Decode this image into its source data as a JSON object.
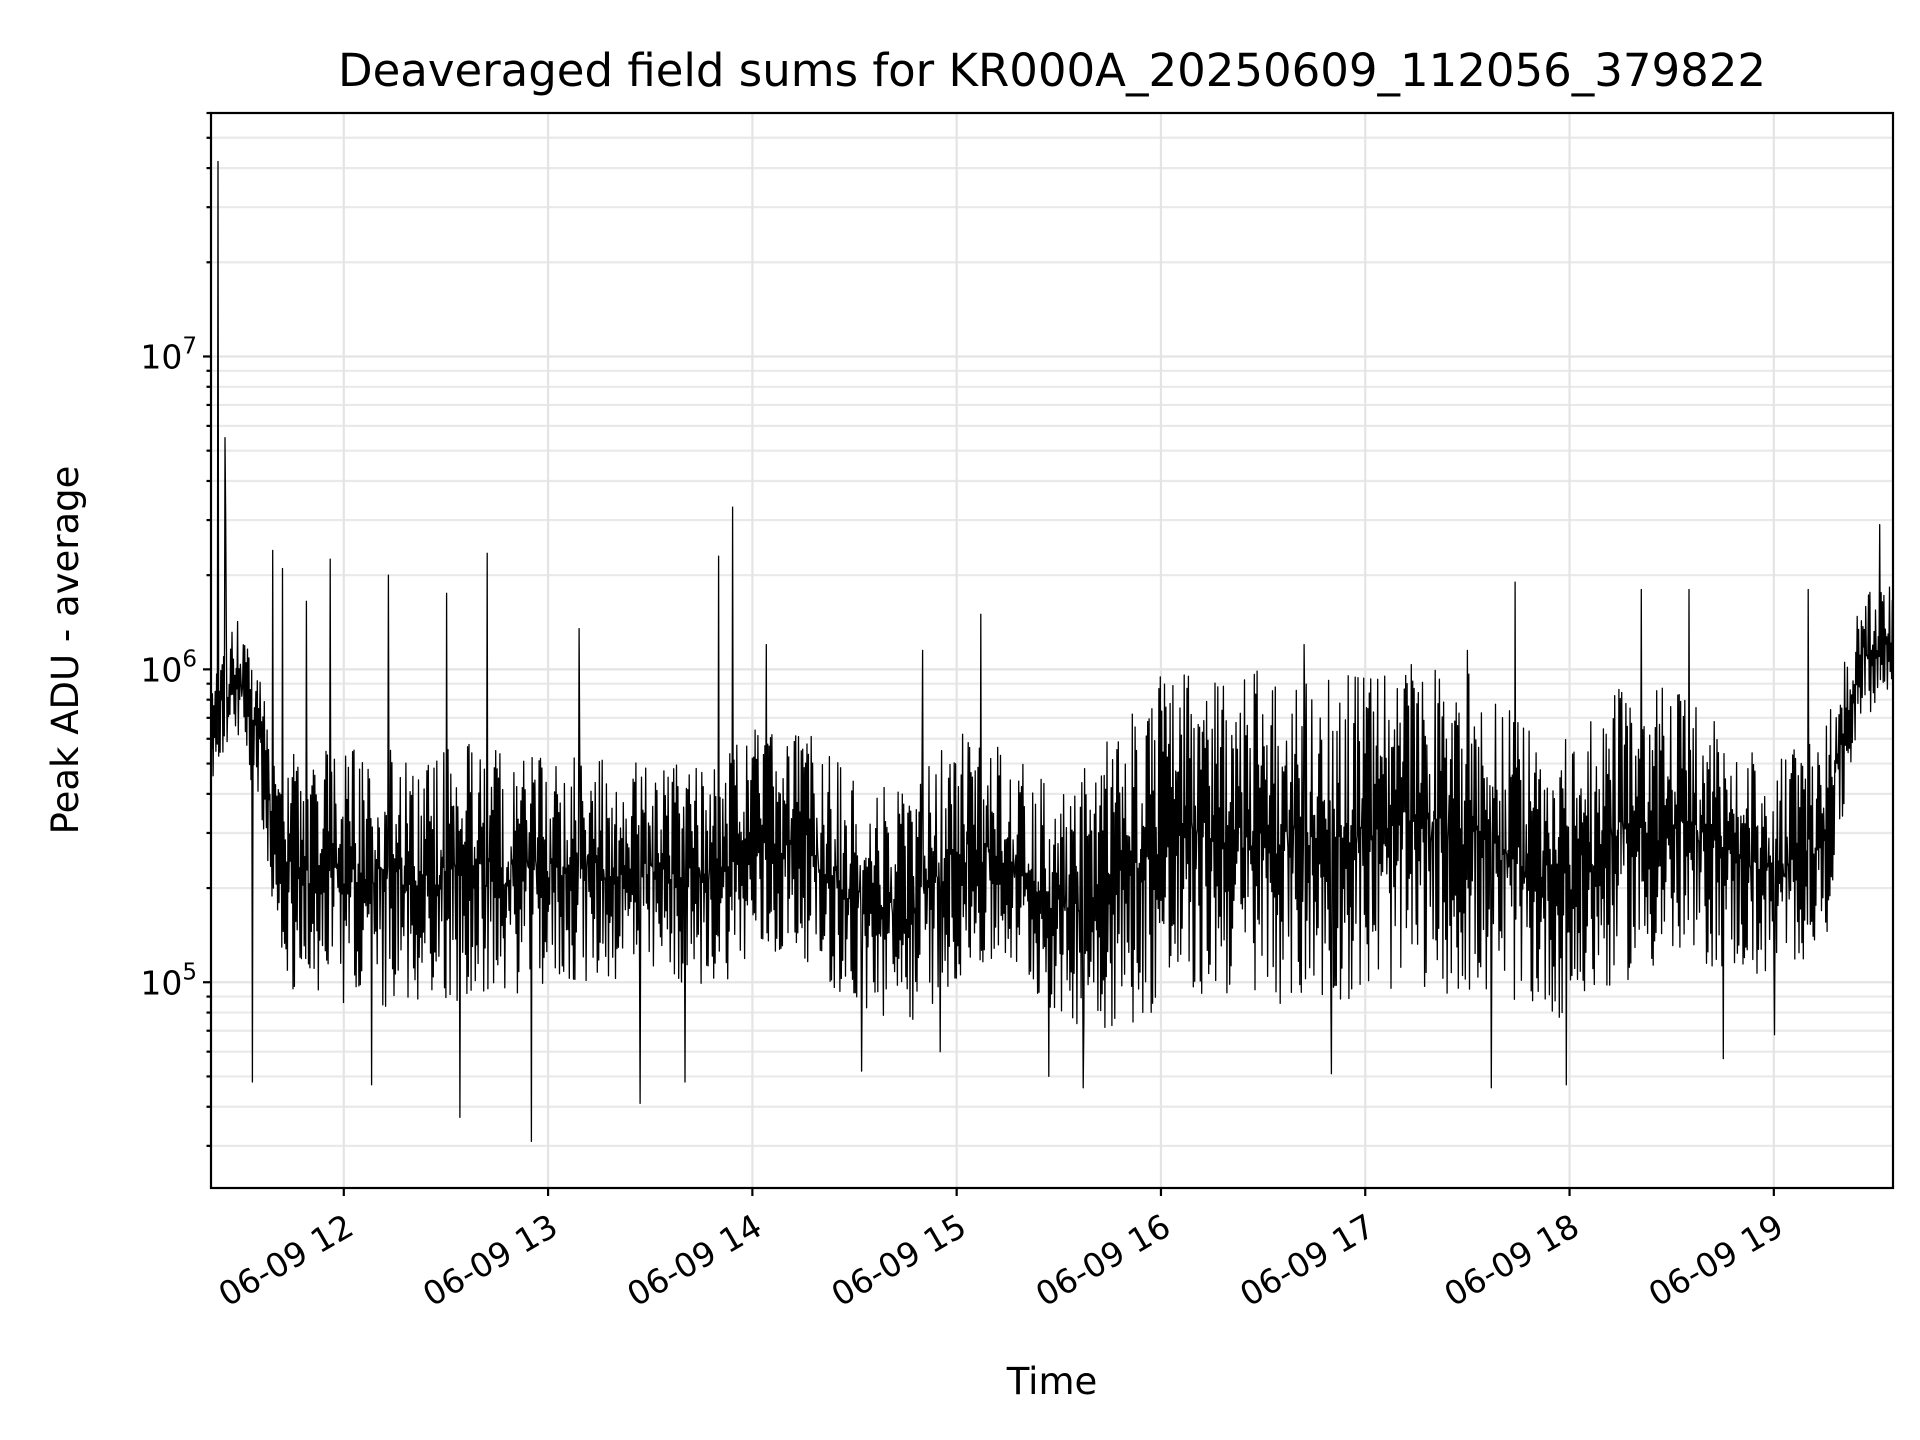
{
  "chart_data": {
    "type": "line",
    "title": "Deaveraged field sums for KR000A_20250609_112056_379822",
    "xlabel": "Time",
    "ylabel": "Peak ADU - average",
    "yscale": "log",
    "xlim": [
      "2025-06-09 11:21",
      "2025-06-09 19:35"
    ],
    "ylim": [
      22000,
      60000000
    ],
    "grid": true,
    "x_ticks": [
      {
        "value": "2025-06-09 12:00",
        "label": "06-09 12"
      },
      {
        "value": "2025-06-09 13:00",
        "label": "06-09 13"
      },
      {
        "value": "2025-06-09 14:00",
        "label": "06-09 14"
      },
      {
        "value": "2025-06-09 15:00",
        "label": "06-09 15"
      },
      {
        "value": "2025-06-09 16:00",
        "label": "06-09 16"
      },
      {
        "value": "2025-06-09 17:00",
        "label": "06-09 17"
      },
      {
        "value": "2025-06-09 18:00",
        "label": "06-09 18"
      },
      {
        "value": "2025-06-09 19:00",
        "label": "06-09 19"
      }
    ],
    "y_ticks": [
      {
        "value": 100000,
        "base": "10",
        "exp": "5"
      },
      {
        "value": 1000000,
        "base": "10",
        "exp": "6"
      },
      {
        "value": 10000000,
        "base": "10",
        "exp": "7"
      }
    ],
    "series_color": "#000000",
    "envelope": {
      "time": [
        "2025-06-09 11:21",
        "2025-06-09 11:25",
        "2025-06-09 11:30",
        "2025-06-09 11:35",
        "2025-06-09 11:40",
        "2025-06-09 11:45",
        "2025-06-09 11:50",
        "2025-06-09 12:00",
        "2025-06-09 12:15",
        "2025-06-09 12:30",
        "2025-06-09 12:45",
        "2025-06-09 13:00",
        "2025-06-09 13:15",
        "2025-06-09 13:30",
        "2025-06-09 13:45",
        "2025-06-09 14:00",
        "2025-06-09 14:15",
        "2025-06-09 14:30",
        "2025-06-09 14:45",
        "2025-06-09 15:00",
        "2025-06-09 15:15",
        "2025-06-09 15:30",
        "2025-06-09 15:45",
        "2025-06-09 16:00",
        "2025-06-09 16:15",
        "2025-06-09 16:30",
        "2025-06-09 16:45",
        "2025-06-09 17:00",
        "2025-06-09 17:15",
        "2025-06-09 17:30",
        "2025-06-09 17:45",
        "2025-06-09 18:00",
        "2025-06-09 18:15",
        "2025-06-09 18:30",
        "2025-06-09 18:45",
        "2025-06-09 19:00",
        "2025-06-09 19:15",
        "2025-06-09 19:25",
        "2025-06-09 19:35"
      ],
      "low": [
        400000,
        550000,
        500000,
        400000,
        150000,
        90000,
        90000,
        85000,
        80000,
        85000,
        90000,
        95000,
        100000,
        100000,
        95000,
        110000,
        120000,
        80000,
        70000,
        100000,
        110000,
        75000,
        70000,
        80000,
        90000,
        85000,
        85000,
        90000,
        95000,
        90000,
        85000,
        75000,
        100000,
        110000,
        110000,
        100000,
        130000,
        700000,
        800000
      ],
      "high": [
        1100000,
        1200000,
        1500000,
        1000000,
        500000,
        600000,
        550000,
        550000,
        600000,
        600000,
        550000,
        550000,
        550000,
        500000,
        500000,
        650000,
        650000,
        450000,
        400000,
        650000,
        550000,
        400000,
        600000,
        1000000,
        1000000,
        1000000,
        950000,
        1000000,
        1050000,
        1000000,
        700000,
        600000,
        900000,
        900000,
        650000,
        500000,
        650000,
        1800000,
        1900000
      ]
    },
    "spikes": [
      {
        "time": "2025-06-09 11:23",
        "value": 42000000
      },
      {
        "time": "2025-06-09 11:25",
        "value": 5500000
      },
      {
        "time": "2025-06-09 11:25",
        "value": 3000000
      },
      {
        "time": "2025-06-09 11:39",
        "value": 2400000
      },
      {
        "time": "2025-06-09 11:42",
        "value": 2100000
      },
      {
        "time": "2025-06-09 11:49",
        "value": 1650000
      },
      {
        "time": "2025-06-09 11:56",
        "value": 2250000
      },
      {
        "time": "2025-06-09 12:13",
        "value": 2000000
      },
      {
        "time": "2025-06-09 12:30",
        "value": 1750000
      },
      {
        "time": "2025-06-09 12:42",
        "value": 2350000
      },
      {
        "time": "2025-06-09 13:09",
        "value": 1350000
      },
      {
        "time": "2025-06-09 13:50",
        "value": 2300000
      },
      {
        "time": "2025-06-09 13:54",
        "value": 3300000
      },
      {
        "time": "2025-06-09 14:04",
        "value": 1200000
      },
      {
        "time": "2025-06-09 14:50",
        "value": 1150000
      },
      {
        "time": "2025-06-09 15:07",
        "value": 1500000
      },
      {
        "time": "2025-06-09 16:42",
        "value": 1200000
      },
      {
        "time": "2025-06-09 17:30",
        "value": 1150000
      },
      {
        "time": "2025-06-09 17:44",
        "value": 1900000
      },
      {
        "time": "2025-06-09 18:21",
        "value": 1800000
      },
      {
        "time": "2025-06-09 18:35",
        "value": 1800000
      },
      {
        "time": "2025-06-09 19:10",
        "value": 1800000
      },
      {
        "time": "2025-06-09 19:31",
        "value": 2900000
      },
      {
        "time": "2025-06-09 11:33",
        "value": 48000
      },
      {
        "time": "2025-06-09 12:08",
        "value": 47000
      },
      {
        "time": "2025-06-09 12:34",
        "value": 37000
      },
      {
        "time": "2025-06-09 12:55",
        "value": 31000
      },
      {
        "time": "2025-06-09 13:27",
        "value": 41000
      },
      {
        "time": "2025-06-09 13:40",
        "value": 48000
      },
      {
        "time": "2025-06-09 14:32",
        "value": 52000
      },
      {
        "time": "2025-06-09 14:55",
        "value": 60000
      },
      {
        "time": "2025-06-09 15:27",
        "value": 50000
      },
      {
        "time": "2025-06-09 15:37",
        "value": 46000
      },
      {
        "time": "2025-06-09 16:50",
        "value": 51000
      },
      {
        "time": "2025-06-09 17:37",
        "value": 46000
      },
      {
        "time": "2025-06-09 17:59",
        "value": 47000
      },
      {
        "time": "2025-06-09 18:45",
        "value": 57000
      },
      {
        "time": "2025-06-09 19:00",
        "value": 68000
      }
    ]
  }
}
